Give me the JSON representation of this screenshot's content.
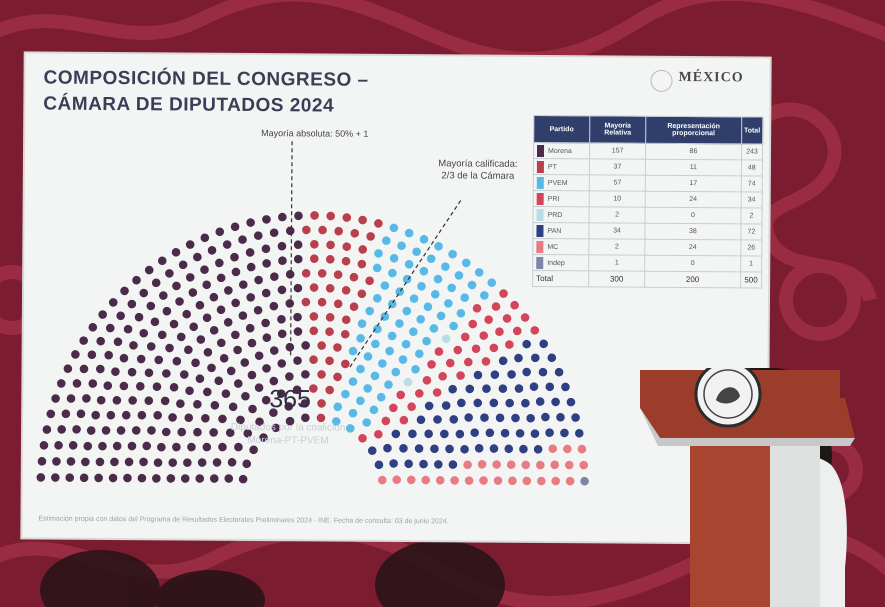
{
  "slide": {
    "title_line1": "COMPOSICIÓN DEL CONGRESO –",
    "title_line2": "CÁMARA DE DIPUTADOS 2024",
    "logo_text": "MÉXICO",
    "annotation_absolute": "Mayoría absoluta: 50% + 1",
    "annotation_qualified": "Mayoría calificada: 2/3 de la Cámara",
    "big_number": "365",
    "big_number_caption": "Diputados por la coalición Morena-PT-PVEM",
    "footer": "Estimación propia con datos del Programa de Resultados Electorales Preliminares 2024 · INE. Fecha de consulta: 03 de junio 2024."
  },
  "table": {
    "headers": [
      "Partido",
      "Mayoría Relativa",
      "Representación proporcional",
      "Total"
    ],
    "rows": [
      {
        "party": "Morena",
        "mr": "157",
        "rp": "86",
        "total": "243",
        "color": "#4b2a4a"
      },
      {
        "party": "PT",
        "mr": "37",
        "rp": "11",
        "total": "48",
        "color": "#b7404c"
      },
      {
        "party": "PVEM",
        "mr": "57",
        "rp": "17",
        "total": "74",
        "color": "#58b8e6"
      },
      {
        "party": "PRI",
        "mr": "10",
        "rp": "24",
        "total": "34",
        "color": "#d3455a"
      },
      {
        "party": "PRD",
        "mr": "2",
        "rp": "0",
        "total": "2",
        "color": "#b9dde8"
      },
      {
        "party": "PAN",
        "mr": "34",
        "rp": "38",
        "total": "72",
        "color": "#2e3f82"
      },
      {
        "party": "MC",
        "mr": "2",
        "rp": "24",
        "total": "26",
        "color": "#e87c83"
      },
      {
        "party": "Indep",
        "mr": "1",
        "rp": "0",
        "total": "1",
        "color": "#7f85a6"
      }
    ],
    "total_row": {
      "label": "Total",
      "mr": "300",
      "rp": "200",
      "total": "500"
    }
  },
  "seat_groups": [
    {
      "party": "Morena",
      "seats": 243,
      "color": "#4b2a4a"
    },
    {
      "party": "PT",
      "seats": 48,
      "color": "#b7404c"
    },
    {
      "party": "PVEM",
      "seats": 74,
      "color": "#58b8e6"
    },
    {
      "party": "PRD",
      "seats": 2,
      "color": "#b9dde8"
    },
    {
      "party": "PRI",
      "seats": 34,
      "color": "#d3455a"
    },
    {
      "party": "PAN",
      "seats": 72,
      "color": "#2e3f82"
    },
    {
      "party": "MC",
      "seats": 26,
      "color": "#e87c83"
    },
    {
      "party": "Indep",
      "seats": 1,
      "color": "#7f85a6"
    }
  ]
}
